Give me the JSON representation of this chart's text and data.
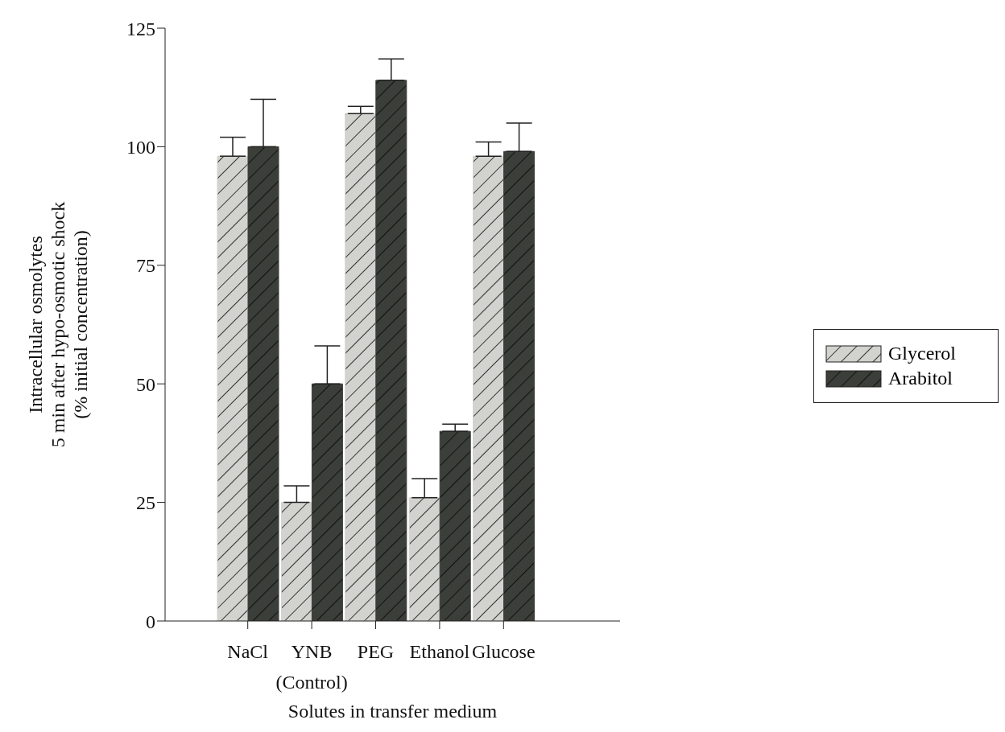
{
  "chart_data": {
    "type": "bar",
    "xlabel": "Solutes in transfer medium",
    "ylabel": "Intracellular osmolytes\n5 min after hypo-osmotic shock\n(% initial concentration)",
    "categories": [
      "NaCl",
      "YNB\n(Control)",
      "PEG",
      "Ethanol",
      "Glucose"
    ],
    "series": [
      {
        "name": "Glycerol",
        "color": "#d2d2ce",
        "values": [
          98,
          25,
          107,
          26,
          98
        ],
        "errors": [
          [
            98,
            102
          ],
          [
            25,
            28.5
          ],
          [
            107,
            108.5
          ],
          [
            26,
            30
          ],
          [
            98,
            101
          ]
        ]
      },
      {
        "name": "Arabitol",
        "color": "#3b3e39",
        "values": [
          100,
          50,
          114,
          40,
          99
        ],
        "errors": [
          [
            100,
            110
          ],
          [
            50,
            58
          ],
          [
            114,
            118.5
          ],
          [
            40,
            41.5
          ],
          [
            99,
            105
          ]
        ]
      }
    ],
    "ylim": [
      0,
      125
    ],
    "yticks": [
      0,
      25,
      50,
      75,
      100,
      125
    ],
    "grid": false,
    "legend": "right"
  }
}
